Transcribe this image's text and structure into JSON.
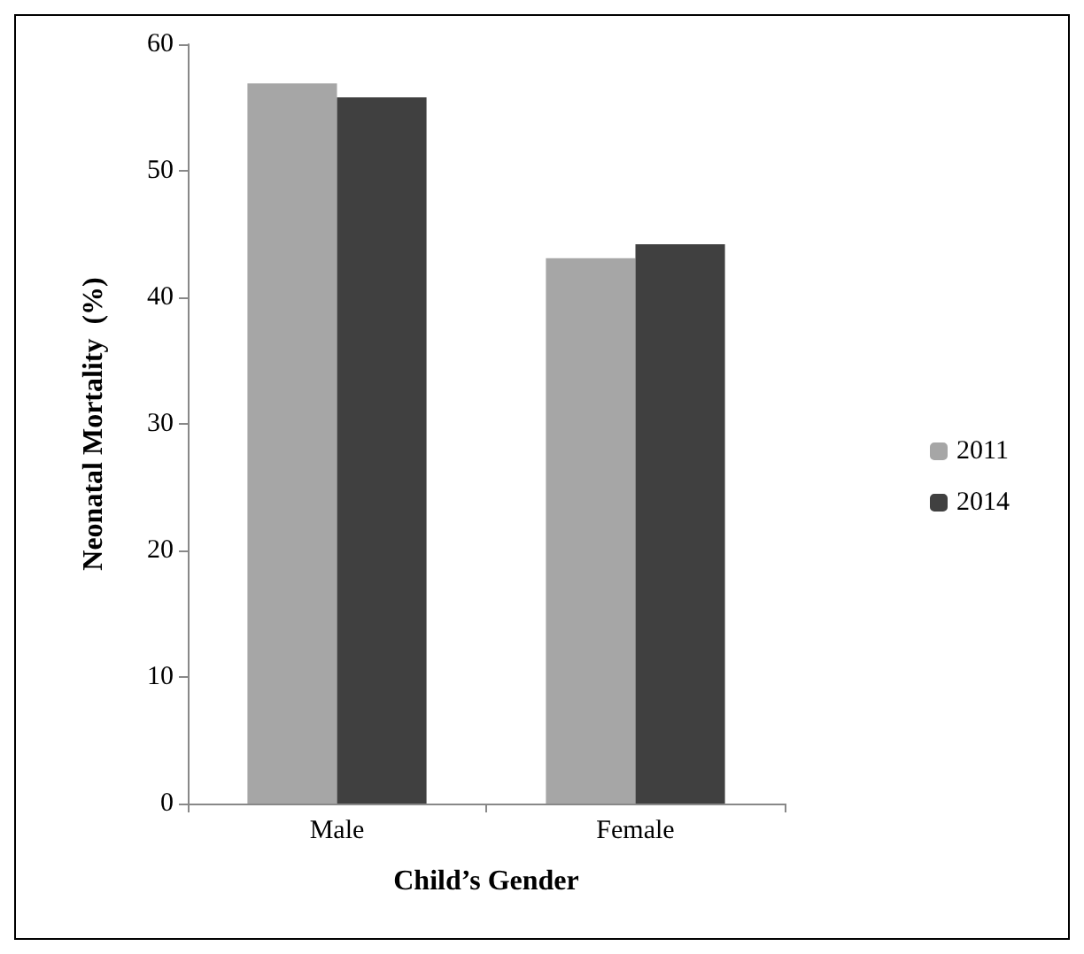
{
  "chart_data": {
    "type": "bar",
    "xlabel": "Child’s Gender",
    "ylabel": "Neonatal Mortality  (%)",
    "categories": [
      "Male",
      "Female"
    ],
    "series": [
      {
        "name": "2011",
        "color": "#a6a6a6",
        "values": [
          56.9,
          43.1
        ]
      },
      {
        "name": "2014",
        "color": "#404040",
        "values": [
          55.8,
          44.2
        ]
      }
    ],
    "ylim": [
      0,
      60
    ],
    "yticks": [
      0,
      10,
      20,
      30,
      40,
      50,
      60
    ],
    "grid": false,
    "legend": "right"
  }
}
